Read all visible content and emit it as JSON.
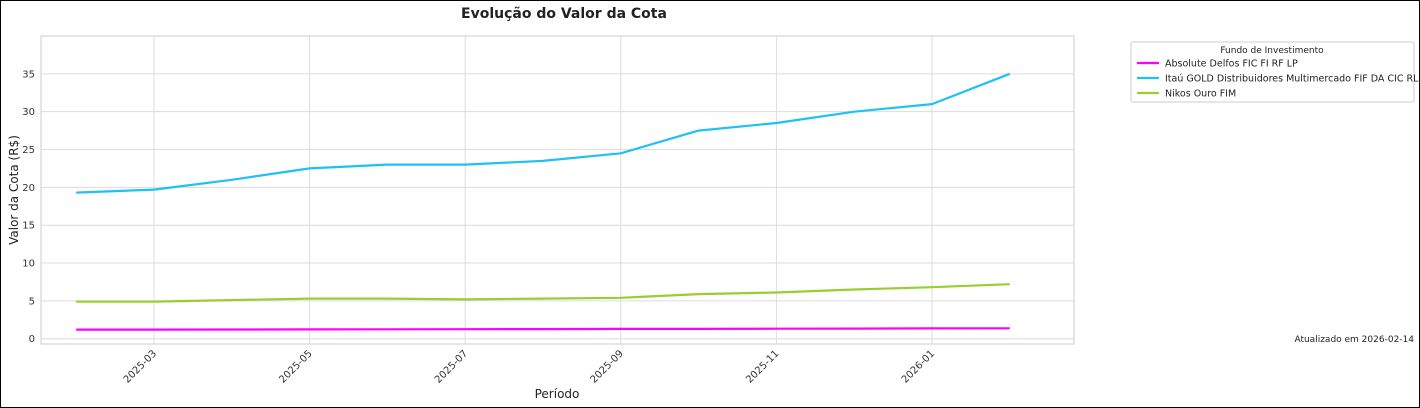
{
  "chart_data": {
    "type": "line",
    "title": "Evolução do Valor da Cota",
    "x_label": "Período",
    "y_label": "Valor da Cota (R$)",
    "annotation": "Atualizado em 2026-02-14",
    "legend_title": "Fundo de Investimento",
    "legend": "upper right outside",
    "grid": true,
    "x": [
      "2025-02",
      "2025-03",
      "2025-04",
      "2025-05",
      "2025-06",
      "2025-07",
      "2025-08",
      "2025-09",
      "2025-10",
      "2025-11",
      "2025-12",
      "2026-01",
      "2026-02"
    ],
    "xticks": [
      "2025-03",
      "2025-05",
      "2025-07",
      "2025-09",
      "2025-11",
      "2026-01"
    ],
    "ylim": [
      -0.7,
      40
    ],
    "yticks": [
      0,
      5,
      10,
      15,
      20,
      25,
      30,
      35
    ],
    "series": [
      {
        "name": "Absolute Delfos FIC FI RF LP",
        "color": "#ff00ff",
        "values": [
          1.2,
          1.2,
          1.22,
          1.23,
          1.24,
          1.26,
          1.27,
          1.29,
          1.3,
          1.32,
          1.34,
          1.36,
          1.38
        ]
      },
      {
        "name": "Itaú GOLD Distribuidores Multimercado FIF DA CIC RL",
        "color": "#1ec1f5",
        "values": [
          19.3,
          19.7,
          21.0,
          22.5,
          23.0,
          23.0,
          23.5,
          24.5,
          27.5,
          28.5,
          30.0,
          31.0,
          35.0
        ]
      },
      {
        "name": "Nikos Ouro FIM",
        "color": "#9acd32",
        "values": [
          4.9,
          4.9,
          5.1,
          5.3,
          5.3,
          5.2,
          5.3,
          5.4,
          5.9,
          6.1,
          6.5,
          6.8,
          7.2
        ]
      }
    ]
  }
}
